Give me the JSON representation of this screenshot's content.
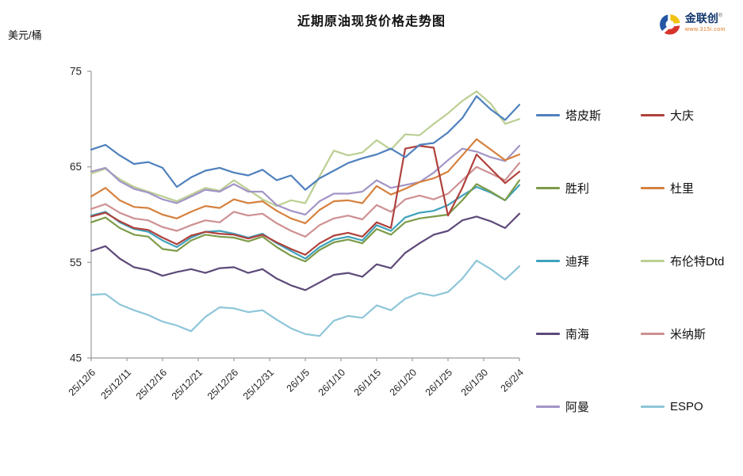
{
  "meta": {
    "title": "近期原油现货价格走势图",
    "unit": "美元/桶"
  },
  "logo": {
    "brand": "金联创",
    "reg": "®",
    "url": "www.315i.com",
    "icon_colors": {
      "blue": "#2456a4",
      "yellow": "#f2c20f",
      "red": "#d6342c"
    }
  },
  "axis_style": {
    "line_color": "#9b9b9b",
    "text_color": "#262626"
  },
  "chart_data": {
    "type": "line",
    "title": "近期原油现货价格走势图",
    "ylabel": "美元/桶",
    "ylim": [
      45,
      75
    ],
    "y_ticks": [
      45,
      55,
      65,
      75
    ],
    "grid": false,
    "legend_position": "right",
    "x_tick_labels": [
      "25/12/6",
      "25/12/11",
      "25/12/16",
      "25/12/21",
      "25/12/26",
      "25/12/31",
      "26/1/5",
      "26/1/10",
      "26/1/15",
      "26/1/20",
      "26/1/25",
      "26/1/30",
      "26/2/4"
    ],
    "x_tick_days": [
      0,
      5,
      10,
      15,
      20,
      25,
      30,
      35,
      40,
      45,
      50,
      55,
      60
    ],
    "x_days": [
      0,
      2,
      4,
      6,
      8,
      10,
      12,
      14,
      16,
      18,
      20,
      22,
      24,
      26,
      28,
      30,
      32,
      34,
      36,
      38,
      40,
      42,
      44,
      46,
      48,
      50,
      52,
      54,
      56,
      58,
      60
    ],
    "series": [
      {
        "name": "塔皮斯",
        "color": "#4F81BD",
        "values": [
          66.8,
          67.3,
          66.2,
          65.3,
          65.5,
          64.9,
          62.9,
          63.9,
          64.6,
          64.9,
          64.4,
          64.1,
          64.7,
          63.6,
          64.1,
          62.6,
          63.8,
          64.6,
          65.4,
          65.9,
          66.3,
          66.9,
          66.0,
          67.3,
          67.5,
          68.6,
          70.1,
          72.4,
          71.0,
          69.9,
          71.5
        ]
      },
      {
        "name": "大庆",
        "color": "#B0413C",
        "values": [
          59.8,
          60.2,
          59.3,
          58.6,
          58.4,
          57.6,
          56.9,
          57.8,
          58.2,
          58.0,
          57.9,
          57.5,
          57.9,
          57.1,
          56.4,
          55.8,
          57.0,
          57.8,
          58.1,
          57.7,
          59.2,
          58.6,
          66.9,
          67.2,
          67.0,
          59.9,
          62.8,
          66.3,
          64.8,
          63.3,
          64.5
        ]
      },
      {
        "name": "胜利",
        "color": "#7E9B49",
        "values": [
          59.2,
          59.7,
          58.6,
          57.9,
          57.7,
          56.4,
          56.2,
          57.3,
          57.9,
          57.7,
          57.6,
          57.2,
          57.7,
          56.6,
          55.7,
          55.1,
          56.3,
          57.1,
          57.4,
          57.0,
          58.5,
          57.9,
          59.2,
          59.6,
          59.8,
          60.0,
          61.5,
          63.2,
          62.4,
          61.5,
          63.6
        ]
      },
      {
        "name": "杜里",
        "color": "#D6813E",
        "values": [
          61.9,
          62.8,
          61.5,
          60.8,
          60.7,
          60.0,
          59.6,
          60.3,
          60.9,
          60.7,
          61.6,
          61.2,
          61.4,
          60.4,
          59.6,
          59.1,
          60.5,
          61.4,
          61.5,
          61.2,
          63.0,
          62.1,
          62.7,
          63.4,
          63.8,
          64.5,
          66.2,
          67.9,
          66.8,
          65.7,
          66.3
        ]
      },
      {
        "name": "迪拜",
        "color": "#3FA2BC",
        "values": [
          59.9,
          60.3,
          59.2,
          58.5,
          58.2,
          57.3,
          56.6,
          57.6,
          58.2,
          58.3,
          58.0,
          57.6,
          58.0,
          57.0,
          56.2,
          55.4,
          56.6,
          57.4,
          57.7,
          57.3,
          58.9,
          58.3,
          59.7,
          60.2,
          60.4,
          61.0,
          62.0,
          62.9,
          62.3,
          61.5,
          63.1
        ]
      },
      {
        "name": "布伦特Dtd",
        "color": "#BCCF92",
        "values": [
          64.3,
          64.8,
          63.7,
          62.9,
          62.4,
          61.9,
          61.4,
          62.1,
          62.8,
          62.5,
          63.6,
          62.6,
          61.6,
          60.9,
          61.5,
          61.2,
          64.0,
          66.7,
          66.2,
          66.5,
          67.8,
          66.8,
          68.4,
          68.3,
          69.5,
          70.6,
          71.9,
          72.9,
          71.6,
          69.5,
          70.0
        ]
      },
      {
        "name": "南海",
        "color": "#5D4A79",
        "values": [
          56.2,
          56.7,
          55.4,
          54.5,
          54.2,
          53.6,
          54.0,
          54.3,
          53.9,
          54.4,
          54.5,
          53.9,
          54.3,
          53.3,
          52.6,
          52.1,
          52.9,
          53.7,
          53.9,
          53.5,
          54.8,
          54.4,
          56.0,
          57.0,
          57.9,
          58.3,
          59.4,
          59.8,
          59.3,
          58.6,
          60.1
        ]
      },
      {
        "name": "米纳斯",
        "color": "#CE9092",
        "values": [
          60.6,
          61.1,
          60.2,
          59.6,
          59.4,
          58.7,
          58.3,
          58.9,
          59.4,
          59.2,
          60.3,
          59.9,
          60.1,
          59.1,
          58.3,
          57.7,
          58.9,
          59.6,
          59.9,
          59.5,
          61.0,
          60.3,
          61.6,
          62.0,
          61.6,
          62.2,
          63.6,
          65.0,
          64.3,
          63.6,
          65.4
        ]
      },
      {
        "name": "阿曼",
        "color": "#A294C7",
        "values": [
          64.5,
          64.9,
          63.5,
          62.7,
          62.3,
          61.6,
          61.2,
          61.9,
          62.6,
          62.4,
          63.2,
          62.4,
          62.4,
          61.0,
          60.4,
          60.0,
          61.4,
          62.2,
          62.2,
          62.4,
          63.6,
          62.8,
          63.1,
          63.4,
          64.4,
          65.7,
          66.9,
          66.6,
          66.0,
          65.6,
          67.2
        ]
      },
      {
        "name": "ESPO",
        "color": "#8EC6D9",
        "values": [
          51.6,
          51.7,
          50.6,
          50.0,
          49.5,
          48.8,
          48.4,
          47.8,
          49.3,
          50.3,
          50.2,
          49.8,
          50.0,
          49.0,
          48.1,
          47.5,
          47.3,
          48.9,
          49.4,
          49.2,
          50.5,
          50.0,
          51.2,
          51.8,
          51.5,
          51.9,
          53.3,
          55.2,
          54.3,
          53.2,
          54.6
        ]
      }
    ]
  }
}
